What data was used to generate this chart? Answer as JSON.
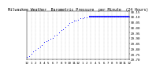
{
  "title": "Milwaukee Weather  Barometric Pressure  per Minute  (24 Hours)",
  "background_color": "#ffffff",
  "plot_bg_color": "#ffffff",
  "grid_color": "#aaaaaa",
  "point_color": "#0000ff",
  "line_color": "#0000ff",
  "ylim": [
    29.7,
    30.15
  ],
  "xlim": [
    0,
    1440
  ],
  "yticks": [
    29.7,
    29.75,
    29.8,
    29.85,
    29.9,
    29.95,
    30.0,
    30.05,
    30.1,
    30.15
  ],
  "xtick_positions": [
    0,
    60,
    120,
    180,
    240,
    300,
    360,
    420,
    480,
    540,
    600,
    660,
    720,
    780,
    840,
    900,
    960,
    1020,
    1080,
    1140,
    1200,
    1260,
    1320,
    1380,
    1440
  ],
  "xtick_labels": [
    "12",
    "1",
    "2",
    "3",
    "4",
    "5",
    "6",
    "7",
    "8",
    "9",
    "10",
    "11",
    "12",
    "1",
    "2",
    "3",
    "4",
    "5",
    "6",
    "7",
    "8",
    "9",
    "10",
    "11",
    "12"
  ],
  "data_x": [
    0,
    30,
    60,
    90,
    120,
    150,
    180,
    210,
    240,
    270,
    300,
    330,
    360,
    390,
    420,
    450,
    480,
    510,
    540,
    570,
    600,
    630,
    660,
    690,
    720,
    750,
    780,
    810,
    840,
    870,
    900,
    930,
    960,
    990,
    1020,
    1050,
    1080,
    1110,
    1140,
    1170,
    1200,
    1230,
    1260,
    1290,
    1320,
    1350,
    1380,
    1410,
    1440
  ],
  "data_y": [
    29.72,
    29.73,
    29.75,
    29.77,
    29.79,
    29.8,
    29.82,
    29.83,
    29.86,
    29.87,
    29.88,
    29.89,
    29.9,
    29.92,
    29.93,
    29.95,
    29.97,
    29.98,
    30.0,
    30.02,
    30.04,
    30.05,
    30.06,
    30.06,
    30.07,
    30.08,
    30.08,
    30.09,
    30.09,
    30.1,
    30.1,
    30.1,
    30.1,
    30.1,
    30.1,
    30.1,
    30.1,
    30.1,
    30.1,
    30.1,
    30.1,
    30.1,
    30.1,
    30.1,
    30.1,
    30.1,
    30.1,
    30.1,
    30.1
  ],
  "title_fontsize": 3.5,
  "tick_fontsize": 3.0,
  "flat_start_x": 870
}
